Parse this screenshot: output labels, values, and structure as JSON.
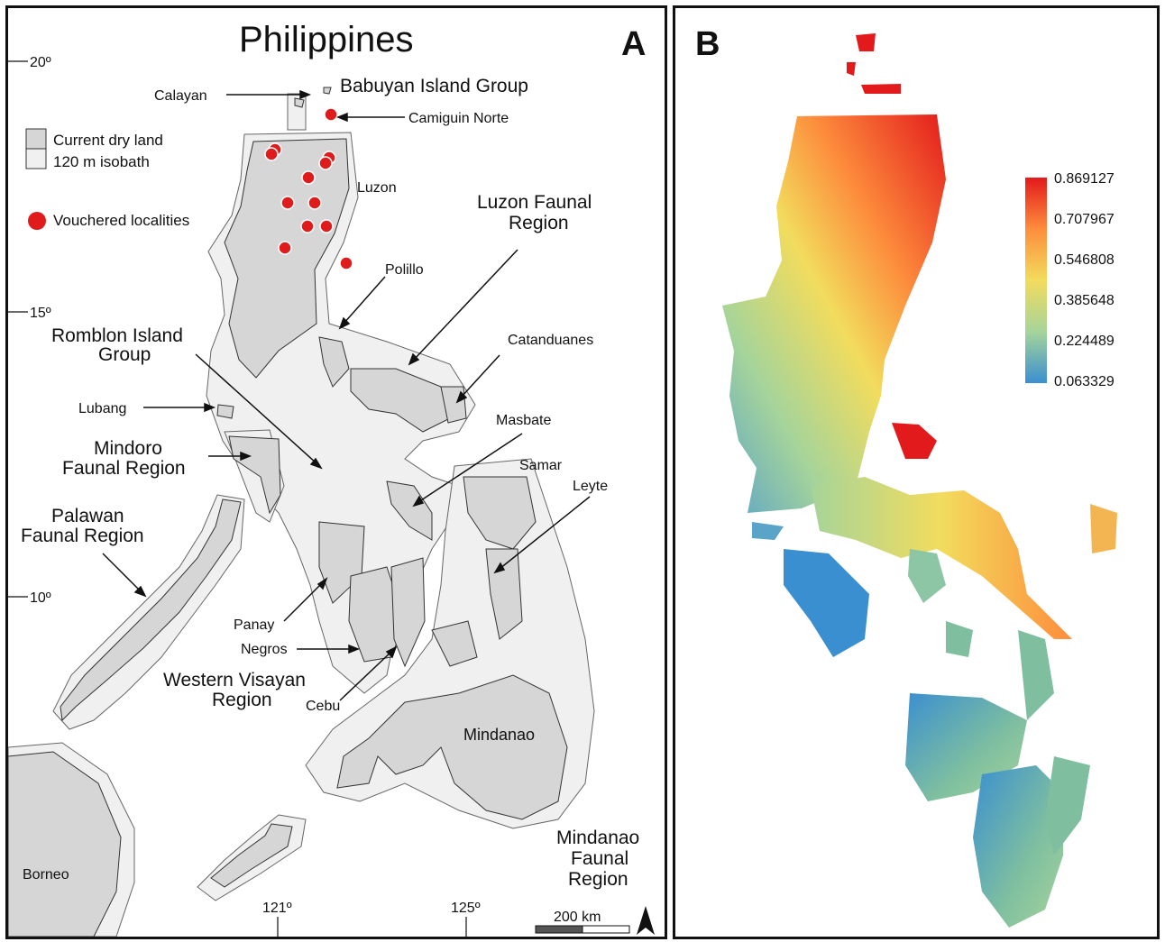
{
  "panel_a": {
    "title": "Philippines",
    "panel_letter": "A",
    "legend": {
      "current_dry_land": "Current dry land",
      "isobath": "120 m isobath",
      "vouchered": "Vouchered localities"
    },
    "latitude_ticks": [
      "20º",
      "15º",
      "10º"
    ],
    "longitude_ticks": [
      "121º",
      "125º"
    ],
    "scale_bar": "200 km",
    "region_labels": {
      "babuyan": "Babuyan Island Group",
      "luzon_faunal_1": "Luzon Faunal",
      "luzon_faunal_2": "Region",
      "romblon_1": "Romblon Island",
      "romblon_2": "Group",
      "mindoro_1": "Mindoro",
      "mindoro_2": "Faunal Region",
      "palawan_1": "Palawan",
      "palawan_2": "Faunal Region",
      "western_visayan_1": "Western Visayan",
      "western_visayan_2": "Region",
      "mindanao_faunal_1": "Mindanao",
      "mindanao_faunal_2": "Faunal",
      "mindanao_faunal_3": "Region"
    },
    "place_labels": {
      "calayan": "Calayan",
      "camiguin_norte": "Camiguin Norte",
      "luzon": "Luzon",
      "polillo": "Polillo",
      "catanduanes": "Catanduanes",
      "lubang": "Lubang",
      "masbate": "Masbate",
      "samar": "Samar",
      "leyte": "Leyte",
      "panay": "Panay",
      "negros": "Negros",
      "cebu": "Cebu",
      "mindanao": "Mindanao",
      "borneo": "Borneo"
    },
    "colors": {
      "dry_land": "#d6d6d6",
      "isobath": "#f0f0f0",
      "locality": "#e01b1b"
    }
  },
  "panel_b": {
    "panel_letter": "B",
    "colorbar_values": [
      "0.869127",
      "0.707967",
      "0.546808",
      "0.385648",
      "0.224489",
      "0.063329"
    ],
    "colors": {
      "high": "#e31a1c",
      "mid_high": "#fd8d3c",
      "mid": "#f2dc5d",
      "mid_low": "#a6d49a",
      "low": "#3a8fd0"
    }
  }
}
